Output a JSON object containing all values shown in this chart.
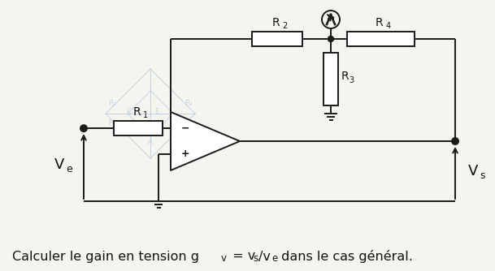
{
  "bg_color": "#f0f0f0",
  "white_color": "#ffffff",
  "line_color": "#1a1a1a",
  "watermark_color": "#a8c0d8",
  "text_color": "#111111",
  "Ve_label": "V",
  "Ve_sub": "e",
  "Vs_label": "V",
  "Vs_sub": "s",
  "R1_label": "R",
  "R1_sub": "1",
  "R2_label": "R",
  "R2_sub": "2",
  "R3_label": "R",
  "R3_sub": "3",
  "R4_label": "R",
  "R4_sub": "4",
  "caption_full": "Calculer le gain en tension g",
  "caption_gv": "v",
  "caption_eq": " = v",
  "caption_vs": "s",
  "caption_div": "/v",
  "caption_ve": "e",
  "caption_end": " dans le cas général."
}
